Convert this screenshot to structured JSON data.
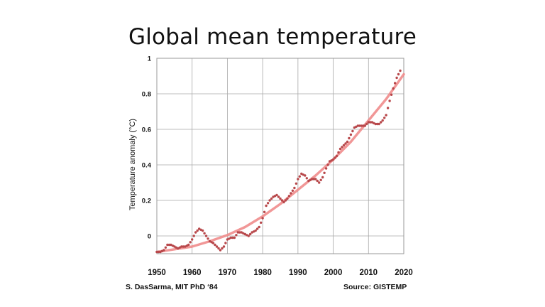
{
  "chart_data": {
    "type": "line",
    "title": "Global mean temperature",
    "xlabel": "",
    "ylabel": "Temperature anomaly (°C)",
    "xlim": [
      1950,
      2020
    ],
    "ylim": [
      -0.1,
      1.0
    ],
    "x_ticks": [
      1950,
      1960,
      1970,
      1980,
      1990,
      2000,
      2010,
      2020
    ],
    "y_ticks": [
      0,
      0.2,
      0.4,
      0.6,
      0.8,
      1
    ],
    "y_tick_labels": [
      "0",
      "0.2",
      "0.4",
      "0.6",
      "0.8",
      "1"
    ],
    "grid": true,
    "series": [
      {
        "style": "dotted",
        "color": "#b8484b",
        "x": [
          1950,
          1951,
          1952,
          1953,
          1954,
          1955,
          1956,
          1957,
          1958,
          1959,
          1960,
          1961,
          1962,
          1963,
          1964,
          1965,
          1966,
          1967,
          1968,
          1969,
          1970,
          1971,
          1972,
          1973,
          1974,
          1975,
          1976,
          1977,
          1978,
          1979,
          1980,
          1981,
          1982,
          1983,
          1984,
          1985,
          1986,
          1987,
          1988,
          1989,
          1990,
          1991,
          1992,
          1993,
          1994,
          1995,
          1996,
          1997,
          1998,
          1999,
          2000,
          2001,
          2002,
          2003,
          2004,
          2005,
          2006,
          2007,
          2008,
          2009,
          2010,
          2011,
          2012,
          2013,
          2014,
          2015,
          2016,
          2017,
          2018,
          2019
        ],
        "values": [
          -0.09,
          -0.09,
          -0.08,
          -0.05,
          -0.05,
          -0.06,
          -0.07,
          -0.06,
          -0.06,
          -0.05,
          -0.02,
          0.02,
          0.04,
          0.03,
          0.0,
          -0.03,
          -0.04,
          -0.06,
          -0.08,
          -0.06,
          -0.02,
          -0.01,
          -0.01,
          0.02,
          0.02,
          0.01,
          0.0,
          0.02,
          0.03,
          0.05,
          0.1,
          0.17,
          0.2,
          0.22,
          0.23,
          0.21,
          0.19,
          0.21,
          0.24,
          0.27,
          0.32,
          0.35,
          0.34,
          0.31,
          0.32,
          0.32,
          0.3,
          0.33,
          0.38,
          0.42,
          0.43,
          0.45,
          0.49,
          0.51,
          0.53,
          0.57,
          0.61,
          0.62,
          0.62,
          0.62,
          0.64,
          0.64,
          0.63,
          0.63,
          0.65,
          0.68,
          0.76,
          0.83,
          0.89,
          0.93
        ]
      },
      {
        "style": "smooth",
        "color": "#f08c8c",
        "x": [
          1950,
          1955,
          1960,
          1965,
          1970,
          1975,
          1980,
          1985,
          1990,
          1995,
          2000,
          2005,
          2010,
          2015,
          2020
        ],
        "values": [
          -0.09,
          -0.075,
          -0.06,
          -0.03,
          0.005,
          0.05,
          0.11,
          0.18,
          0.26,
          0.34,
          0.43,
          0.53,
          0.65,
          0.77,
          0.91
        ]
      }
    ]
  },
  "footer": {
    "credit": "S. DasSarma, MIT PhD ‘84",
    "source": "Source: GISTEMP"
  }
}
